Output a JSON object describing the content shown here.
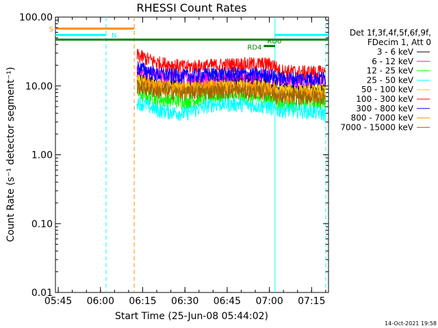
{
  "chart_data": {
    "type": "line",
    "title": "RHESSI Count Rates",
    "xlabel": "Start Time (25-Jun-08 05:44:02)",
    "ylabel": "Count Rate (s⁻¹ detector segment⁻¹)",
    "yscale": "log",
    "xlim": [
      "05:44",
      "07:21"
    ],
    "ylim": [
      0.01,
      100
    ],
    "xticks": [
      "05:45",
      "06:00",
      "06:15",
      "06:30",
      "06:45",
      "07:00",
      "07:15"
    ],
    "yticks": [
      "0.01",
      "0.10",
      "1.00",
      "10.00",
      "100.00"
    ],
    "grid": false,
    "legend_position": "right",
    "legend_header": [
      "Det 1f,3f,4f,5f,6f,9f,",
      "FDecim 1, Att 0"
    ],
    "footer_date": "14-Oct-2021 19:58",
    "series": [
      {
        "name": "3 - 6 keV",
        "color": "#000000",
        "start": "06:13",
        "end": "07:20",
        "times": [
          "06:13",
          "06:20",
          "06:30",
          "06:40",
          "06:50",
          "07:00",
          "07:02",
          "07:03",
          "07:10",
          "07:20"
        ],
        "values": [
          13,
          11,
          10,
          11.5,
          12,
          11,
          10.5,
          9,
          9,
          9
        ]
      },
      {
        "name": "6 - 12 keV",
        "color": "#ff00ff",
        "start": "06:13",
        "end": "07:20",
        "times": [
          "06:13",
          "06:20",
          "06:30",
          "06:40",
          "06:50",
          "07:00",
          "07:02",
          "07:03",
          "07:10",
          "07:20"
        ],
        "values": [
          17,
          14,
          13,
          13.5,
          14,
          14,
          13,
          12,
          12,
          12
        ]
      },
      {
        "name": "12 - 25 keV",
        "color": "#00ff00",
        "start": "06:13",
        "end": "07:20",
        "times": [
          "06:13",
          "06:20",
          "06:30",
          "06:40",
          "06:50",
          "07:00",
          "07:02",
          "07:03",
          "07:10",
          "07:20"
        ],
        "values": [
          8,
          6.5,
          6,
          7,
          7,
          6.5,
          6.5,
          5.5,
          5.5,
          6
        ]
      },
      {
        "name": "25 - 50 keV",
        "color": "#00ffff",
        "start": "06:13",
        "end": "07:20",
        "times": [
          "06:13",
          "06:20",
          "06:30",
          "06:40",
          "06:50",
          "07:00",
          "07:02",
          "07:03",
          "07:10",
          "07:20"
        ],
        "values": [
          6,
          4.5,
          4,
          5.5,
          5.5,
          5,
          4.5,
          4.5,
          4.5,
          4
        ]
      },
      {
        "name": "50 - 100 keV",
        "color": "#ffcc00",
        "start": "06:13",
        "end": "07:20",
        "times": [
          "06:13",
          "06:20",
          "06:30",
          "06:40",
          "06:50",
          "07:00",
          "07:02",
          "07:03",
          "07:10",
          "07:20"
        ],
        "values": [
          12,
          10,
          9.5,
          10,
          10,
          9.5,
          9,
          8.5,
          8.5,
          8.5
        ]
      },
      {
        "name": "100 - 300 keV",
        "color": "#ff0000",
        "start": "06:13",
        "end": "07:20",
        "times": [
          "06:13",
          "06:20",
          "06:30",
          "06:40",
          "06:50",
          "07:00",
          "07:02",
          "07:03",
          "07:10",
          "07:20"
        ],
        "values": [
          28,
          22,
          19,
          20,
          21,
          21,
          20,
          17,
          16,
          16
        ]
      },
      {
        "name": "300 - 800 keV",
        "color": "#0000ff",
        "start": "06:13",
        "end": "07:20",
        "times": [
          "06:13",
          "06:20",
          "06:30",
          "06:40",
          "06:50",
          "07:00",
          "07:02",
          "07:03",
          "07:10",
          "07:20"
        ],
        "values": [
          19,
          15,
          14,
          15,
          15,
          14.5,
          14,
          13,
          13,
          13
        ]
      },
      {
        "name": "800 - 7000 keV",
        "color": "#ff8c00",
        "start": "06:13",
        "end": "07:20",
        "times": [
          "06:13",
          "06:20",
          "06:30",
          "06:40",
          "06:50",
          "07:00",
          "07:02",
          "07:03",
          "07:10",
          "07:20"
        ],
        "values": [
          11,
          9.5,
          9,
          9.5,
          9.5,
          9,
          8.5,
          7.5,
          7.5,
          7.5
        ]
      },
      {
        "name": "7000 - 15000 keV",
        "color": "#996600",
        "start": "06:13",
        "end": "07:20",
        "times": [
          "06:13",
          "06:20",
          "06:30",
          "06:40",
          "06:50",
          "07:00",
          "07:02",
          "07:03",
          "07:10",
          "07:20"
        ],
        "values": [
          10,
          8.5,
          8,
          8.5,
          8.5,
          8,
          7.5,
          7,
          7,
          7
        ]
      }
    ],
    "flag_bars": [
      {
        "label": "S",
        "color": "#ff8c00",
        "start": "05:44",
        "end": "06:12",
        "level": 68
      },
      {
        "label": "N",
        "color": "#00ffff",
        "start": "05:44",
        "end": "06:02",
        "level": 55
      },
      {
        "label": "",
        "color": "#00ffff",
        "start": "07:02",
        "end": "07:21",
        "level": 55
      },
      {
        "label": "",
        "color": "#008000",
        "start": "05:44",
        "end": "07:21",
        "level": 47
      },
      {
        "label": "RD0",
        "color": "#008000",
        "start": "06:58",
        "end": "07:02",
        "level": 38
      },
      {
        "label": "RD4",
        "color": "#008000",
        "start": "06:58",
        "end": "07:02",
        "level": 38
      }
    ],
    "vlines": [
      {
        "time": "06:02",
        "color": "#00ffff",
        "style": "dashed"
      },
      {
        "time": "06:12",
        "color": "#ff8c00",
        "style": "dashed"
      },
      {
        "time": "07:02",
        "color": "#00ffff",
        "style": "solid"
      },
      {
        "time": "07:20",
        "color": "#00ffff",
        "style": "dashed"
      }
    ]
  }
}
